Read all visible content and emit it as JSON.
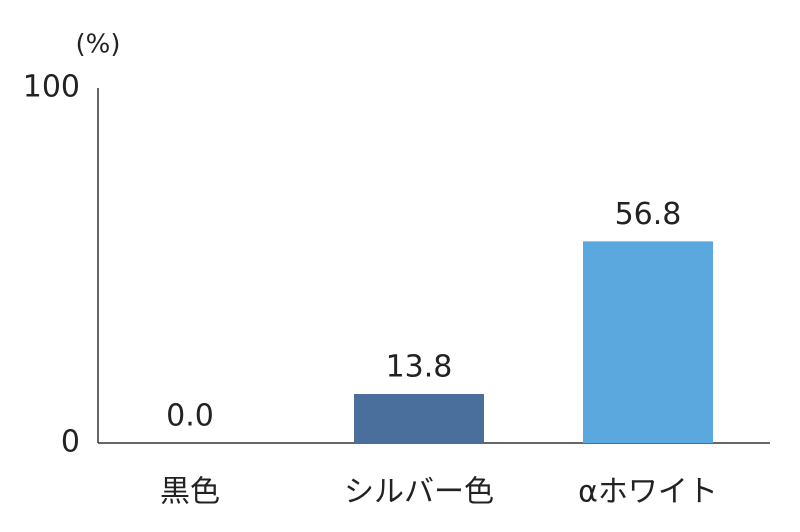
{
  "chart_data": {
    "type": "bar",
    "y_label": "(%)",
    "categories": [
      "黒色",
      "シルバー色",
      "αホワイト"
    ],
    "values": [
      0.0,
      13.8,
      56.8
    ],
    "value_labels": [
      "0.0",
      "13.8",
      "56.8"
    ],
    "colors": [
      "#1a1a1a",
      "#4a6f9c",
      "#5ba8de"
    ],
    "ylim": [
      0,
      100
    ],
    "yticks": [
      0,
      100
    ],
    "grid": false
  }
}
